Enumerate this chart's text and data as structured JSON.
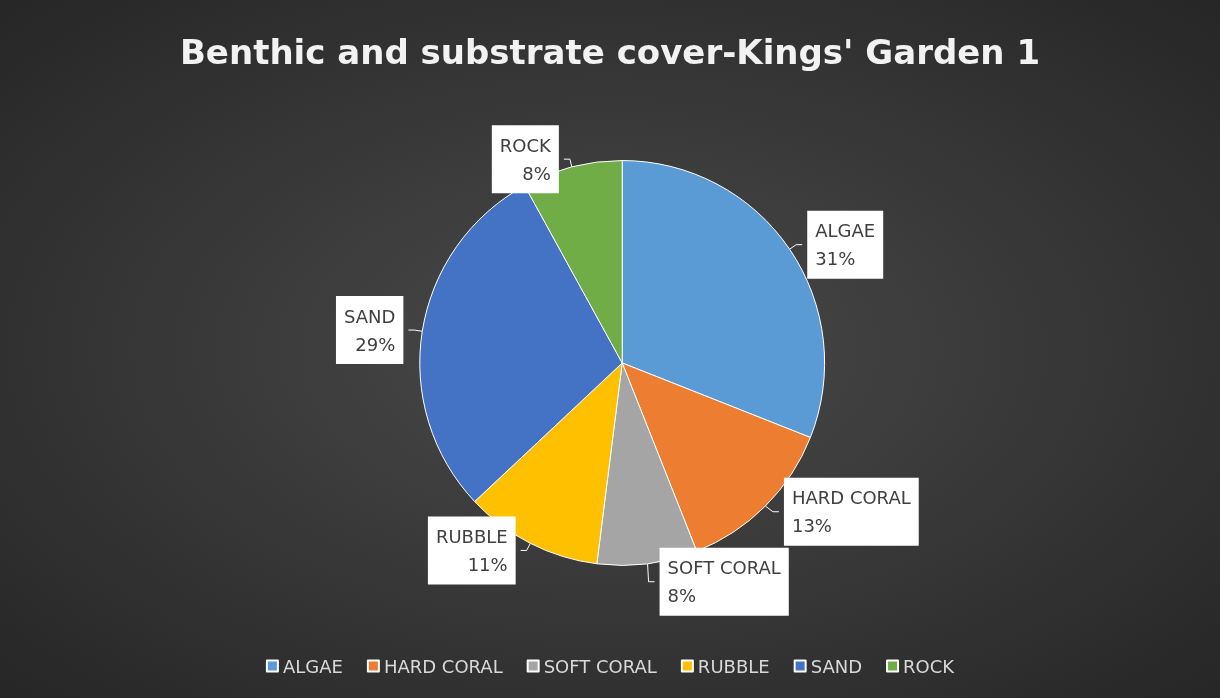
{
  "chart_data": {
    "type": "pie",
    "title": "Benthic and substrate cover-Kings' Garden 1",
    "categories": [
      "ALGAE",
      "HARD CORAL",
      "SOFT CORAL",
      "RUBBLE",
      "SAND",
      "ROCK"
    ],
    "values": [
      31,
      13,
      8,
      11,
      29,
      8
    ],
    "colors": [
      "#5b9bd5",
      "#ed7d31",
      "#a5a5a5",
      "#ffc000",
      "#4472c4",
      "#70ad47"
    ],
    "value_labels": [
      "31%",
      "13%",
      "8%",
      "11%",
      "29%",
      "8%"
    ],
    "legend": "bottom"
  }
}
